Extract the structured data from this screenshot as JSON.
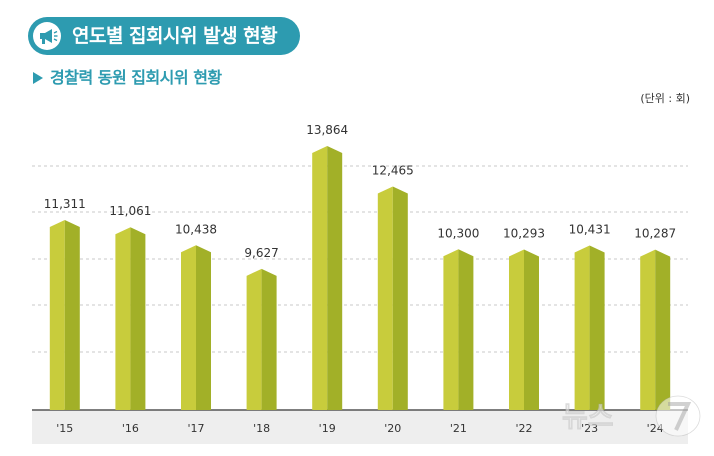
{
  "title": "연도별 집회시위 발생 현황",
  "subtitle": "경찰력 동원 집회시위 현황",
  "unit": "(단위 : 회)",
  "colors": {
    "accent": "#2d9bb0",
    "bar_front": "#c8cc3c",
    "bar_side": "#a2b028",
    "bar_top": "#aab92b",
    "axis_band": "#eeeeee"
  },
  "icons": {
    "title_icon": "megaphone-icon"
  },
  "chart_data": {
    "type": "bar",
    "categories": [
      "'15",
      "'16",
      "'17",
      "'18",
      "'19",
      "'20",
      "'21",
      "'22",
      "'23",
      "'24"
    ],
    "values": [
      11311,
      11061,
      10438,
      9627,
      13864,
      12465,
      10300,
      10293,
      10431,
      10287
    ],
    "value_labels": [
      "11,311",
      "11,061",
      "10,438",
      "9,627",
      "13,864",
      "12,465",
      "10,300",
      "10,293",
      "10,431",
      "10,287"
    ],
    "title": "",
    "xlabel": "",
    "ylabel": "",
    "ylim": [
      5000,
      15000
    ],
    "grid": true,
    "legend": "none"
  }
}
